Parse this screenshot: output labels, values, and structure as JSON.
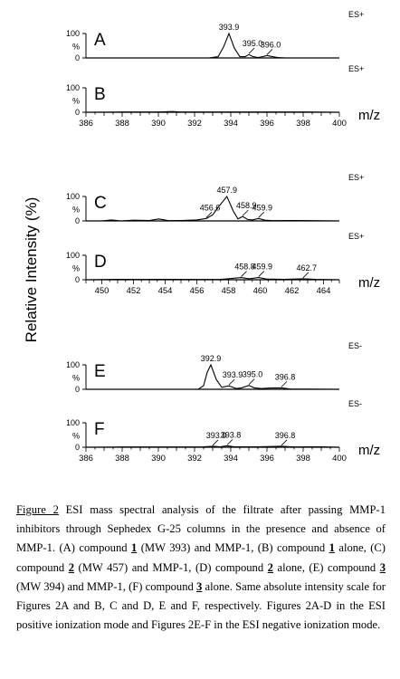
{
  "figure": {
    "ylabel": "Relative Intensity (%)",
    "xunit": "m/z"
  },
  "chart_data": [
    {
      "type": "line",
      "panel_letter": "A",
      "mode": "ES+",
      "xlim": [
        386,
        400
      ],
      "ylim": [
        0,
        100
      ],
      "yticks": [
        "100",
        "%",
        "0"
      ],
      "show_xaxis": false,
      "x": [
        386,
        392.8,
        393.3,
        393.6,
        393.9,
        394.2,
        394.5,
        394.8,
        395.0,
        395.2,
        395.5,
        395.8,
        396.0,
        396.3,
        396.6,
        397,
        400
      ],
      "y": [
        0,
        0,
        5,
        45,
        100,
        40,
        5,
        5,
        14,
        6,
        2,
        6,
        10,
        5,
        2,
        0,
        0
      ],
      "labels": [
        {
          "text": "393.9",
          "x": 393.9,
          "y": 100
        },
        {
          "text": "395.0",
          "x": 395.0,
          "y": 14
        },
        {
          "text": "396.0",
          "x": 396.0,
          "y": 10
        }
      ]
    },
    {
      "type": "line",
      "panel_letter": "B",
      "mode": "ES+",
      "xlim": [
        386,
        400
      ],
      "ylim": [
        0,
        100
      ],
      "yticks": [
        "100",
        "%",
        "0"
      ],
      "show_xaxis": true,
      "xticks": [
        "386",
        "388",
        "390",
        "392",
        "394",
        "396",
        "398",
        "400"
      ],
      "x": [
        386,
        388,
        390,
        390.8,
        391.2,
        392,
        394,
        396,
        398,
        400
      ],
      "y": [
        0,
        1,
        1,
        3,
        1,
        1,
        1,
        1,
        1,
        0
      ],
      "labels": []
    },
    {
      "type": "line",
      "panel_letter": "C",
      "mode": "ES+",
      "xlim": [
        449,
        465
      ],
      "ylim": [
        0,
        100
      ],
      "yticks": [
        "100",
        "%",
        "0"
      ],
      "show_xaxis": false,
      "x": [
        449,
        450,
        450.6,
        451.2,
        452,
        453,
        453.6,
        454.2,
        455,
        456,
        456.6,
        457.0,
        457.4,
        457.9,
        458.3,
        458.6,
        458.9,
        459.2,
        459.5,
        459.9,
        460.3,
        460.8,
        462,
        463,
        465
      ],
      "y": [
        0,
        0,
        4,
        0,
        3,
        2,
        8,
        1,
        2,
        4,
        10,
        25,
        60,
        100,
        40,
        8,
        18,
        6,
        4,
        10,
        3,
        1,
        2,
        1,
        0
      ],
      "labels": [
        {
          "text": "457.9",
          "x": 457.9,
          "y": 100
        },
        {
          "text": "456.6",
          "x": 456.6,
          "y": 10
        },
        {
          "text": "458.9",
          "x": 458.9,
          "y": 18
        },
        {
          "text": "459.9",
          "x": 459.9,
          "y": 10
        }
      ]
    },
    {
      "type": "line",
      "panel_letter": "D",
      "mode": "ES+",
      "xlim": [
        449,
        465
      ],
      "ylim": [
        0,
        100
      ],
      "yticks": [
        "100",
        "%",
        "0"
      ],
      "show_xaxis": true,
      "xticks": [
        "450",
        "452",
        "454",
        "456",
        "458",
        "460",
        "462",
        "464"
      ],
      "x": [
        449,
        451,
        452.5,
        454,
        456,
        457.5,
        458.2,
        458.8,
        459.3,
        459.9,
        460.4,
        461.5,
        462.7,
        463.5,
        465
      ],
      "y": [
        0,
        2,
        1,
        2,
        1,
        2,
        5,
        9,
        4,
        9,
        3,
        2,
        4,
        2,
        0
      ],
      "labels": [
        {
          "text": "458.8",
          "x": 458.8,
          "y": 9
        },
        {
          "text": "459.9",
          "x": 459.9,
          "y": 9
        },
        {
          "text": "462.7",
          "x": 462.7,
          "y": 4
        }
      ]
    },
    {
      "type": "line",
      "panel_letter": "E",
      "mode": "ES-",
      "xlim": [
        386,
        400
      ],
      "ylim": [
        0,
        100
      ],
      "yticks": [
        "100",
        "%",
        "0"
      ],
      "show_xaxis": false,
      "x": [
        386,
        392.2,
        392.5,
        392.7,
        392.9,
        393.2,
        393.5,
        393.9,
        394.3,
        394.6,
        395.0,
        395.3,
        395.7,
        396.2,
        396.8,
        397.3,
        400
      ],
      "y": [
        0,
        0,
        15,
        70,
        100,
        40,
        8,
        14,
        3,
        6,
        16,
        6,
        3,
        5,
        6,
        1,
        0
      ],
      "labels": [
        {
          "text": "392.9",
          "x": 392.9,
          "y": 100
        },
        {
          "text": "393.9",
          "x": 393.9,
          "y": 14
        },
        {
          "text": "395.0",
          "x": 395.0,
          "y": 16
        },
        {
          "text": "396.8",
          "x": 396.8,
          "y": 6
        }
      ]
    },
    {
      "type": "line",
      "panel_letter": "F",
      "mode": "ES-",
      "xlim": [
        386,
        400
      ],
      "ylim": [
        0,
        100
      ],
      "yticks": [
        "100",
        "%",
        "0"
      ],
      "show_xaxis": true,
      "xticks": [
        "386",
        "388",
        "390",
        "392",
        "394",
        "396",
        "398",
        "400"
      ],
      "x": [
        386,
        388,
        390,
        391.5,
        392.5,
        393.0,
        393.4,
        393.8,
        394.2,
        395.5,
        396.8,
        397.5,
        399,
        400
      ],
      "y": [
        0,
        1,
        1,
        1,
        2,
        4,
        2,
        6,
        2,
        2,
        4,
        1,
        2,
        0
      ],
      "labels": [
        {
          "text": "393.0",
          "x": 393.0,
          "y": 4
        },
        {
          "text": "393.8",
          "x": 393.8,
          "y": 6
        },
        {
          "text": "396.8",
          "x": 396.8,
          "y": 4
        }
      ]
    }
  ],
  "caption": {
    "fig_label": "Figure 2",
    "s1": " ESI mass spectral analysis of the filtrate after passing MMP-1 inhibitors through Sephedex G-25 columns in the presence and absence of MMP-1.  (A) compound ",
    "n1a": "1",
    "s2": " (MW 393) and MMP-1, (B) compound ",
    "n1b": "1",
    "s3": " alone, (C) compound ",
    "n2a": "2",
    "s4": " (MW 457) and MMP-1, (D) compound ",
    "n2b": "2",
    "s5": " alone, (E) compound ",
    "n3a": "3",
    "s6": " (MW 394) and MMP-1, (F) compound ",
    "n3b": "3",
    "s7": " alone.  Same absolute intensity scale for Figures 2A and B, C and D, E and F, respectively. Figures 2A-D in the ESI positive ionization mode and Figures 2E-F in the ESI negative ionization mode."
  }
}
